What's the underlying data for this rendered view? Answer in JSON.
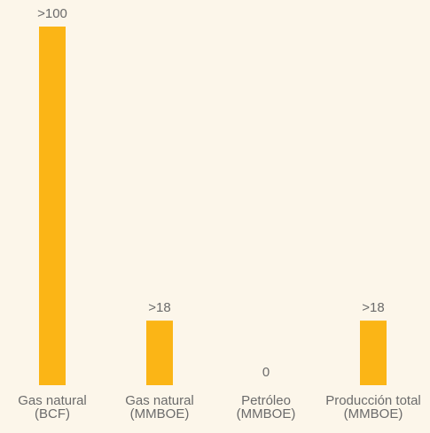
{
  "chart_data": {
    "type": "bar",
    "categories": [
      [
        "Gas natural",
        "(BCF)"
      ],
      [
        "Gas natural",
        "(MMBOE)"
      ],
      [
        "Petróleo",
        "(MMBOE)"
      ],
      [
        "Producción total",
        "(MMBOE)"
      ]
    ],
    "values": [
      100,
      18,
      0,
      18
    ],
    "value_labels": [
      ">100",
      ">18",
      "0",
      ">18"
    ],
    "color": "#fbb516"
  }
}
